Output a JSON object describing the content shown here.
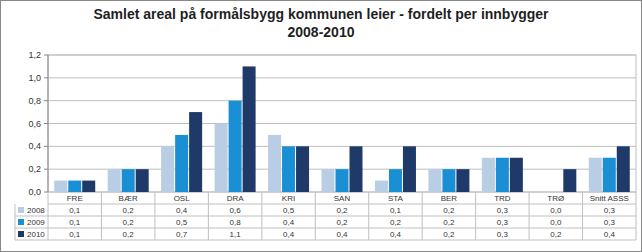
{
  "chart_data": {
    "type": "bar",
    "title": "Samlet areal på formålsbygg kommunen leier - fordelt per innbygger",
    "subtitle": "2008-2010",
    "categories": [
      "FRE",
      "BÆR",
      "OSL",
      "DRA",
      "KRI",
      "SAN",
      "STA",
      "BER",
      "TRD",
      "TRØ",
      "Snitt ASSS"
    ],
    "series": [
      {
        "name": "2008",
        "color": "#b9cde5",
        "values": [
          0.1,
          0.2,
          0.4,
          0.6,
          0.5,
          0.2,
          0.1,
          0.2,
          0.3,
          0.0,
          0.3
        ],
        "value_labels": [
          "0,1",
          "0,2",
          "0,4",
          "0,6",
          "0,5",
          "0,2",
          "0,1",
          "0,2",
          "0,3",
          "0,0",
          "0,3"
        ]
      },
      {
        "name": "2009",
        "color": "#1a8fd4",
        "values": [
          0.1,
          0.2,
          0.5,
          0.8,
          0.4,
          0.2,
          0.2,
          0.2,
          0.3,
          0.0,
          0.3
        ],
        "value_labels": [
          "0,1",
          "0,2",
          "0,5",
          "0,8",
          "0,4",
          "0,2",
          "0,2",
          "0,2",
          "0,3",
          "0,0",
          "0,3"
        ]
      },
      {
        "name": "2010",
        "color": "#1f3a68",
        "values": [
          0.1,
          0.2,
          0.7,
          1.1,
          0.4,
          0.4,
          0.4,
          0.2,
          0.3,
          0.2,
          0.4
        ],
        "value_labels": [
          "0,1",
          "0,2",
          "0,7",
          "1,1",
          "0,4",
          "0,4",
          "0,4",
          "0,2",
          "0,3",
          "0,2",
          "0,4"
        ]
      }
    ],
    "ylim": [
      0,
      1.2
    ],
    "yticks": [
      {
        "value": 0,
        "label": "0,0"
      },
      {
        "value": 0.2,
        "label": "0,2"
      },
      {
        "value": 0.4,
        "label": "0,4"
      },
      {
        "value": 0.6,
        "label": "0,6"
      },
      {
        "value": 0.8,
        "label": "0,8"
      },
      {
        "value": 1.0,
        "label": "1,0"
      },
      {
        "value": 1.2,
        "label": "1,2"
      }
    ],
    "grid": true
  }
}
